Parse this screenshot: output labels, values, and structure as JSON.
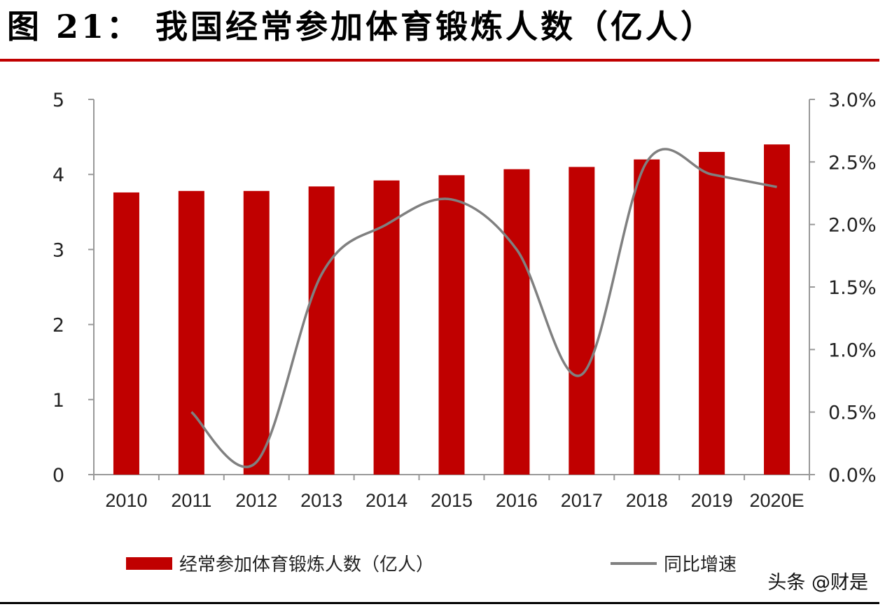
{
  "header": {
    "title": "图 21： 我国经常参加体育锻炼人数（亿人）"
  },
  "watermark": "头条 @财是",
  "chart_data": {
    "type": "bar",
    "categories": [
      "2010",
      "2011",
      "2012",
      "2013",
      "2014",
      "2015",
      "2016",
      "2017",
      "2018",
      "2019",
      "2020E"
    ],
    "series": [
      {
        "name": "经常参加体育锻炼人数（亿人）",
        "type": "bar",
        "axis": "left",
        "color": "#c00000",
        "values": [
          3.76,
          3.78,
          3.78,
          3.84,
          3.92,
          3.99,
          4.07,
          4.1,
          4.2,
          4.3,
          4.4
        ]
      },
      {
        "name": "同比增速",
        "type": "line",
        "axis": "right",
        "color": "#808080",
        "values": [
          null,
          0.005,
          0.001,
          0.016,
          0.02,
          0.022,
          0.018,
          0.008,
          0.025,
          0.024,
          0.023
        ]
      }
    ],
    "left_axis": {
      "min": 0,
      "max": 5,
      "ticks": [
        "0",
        "1",
        "2",
        "3",
        "4",
        "5"
      ]
    },
    "right_axis": {
      "min": 0,
      "max": 0.03,
      "ticks": [
        "0.0%",
        "0.5%",
        "1.0%",
        "1.5%",
        "2.0%",
        "2.5%",
        "3.0%"
      ]
    },
    "grid": false,
    "legend": "bottom"
  }
}
